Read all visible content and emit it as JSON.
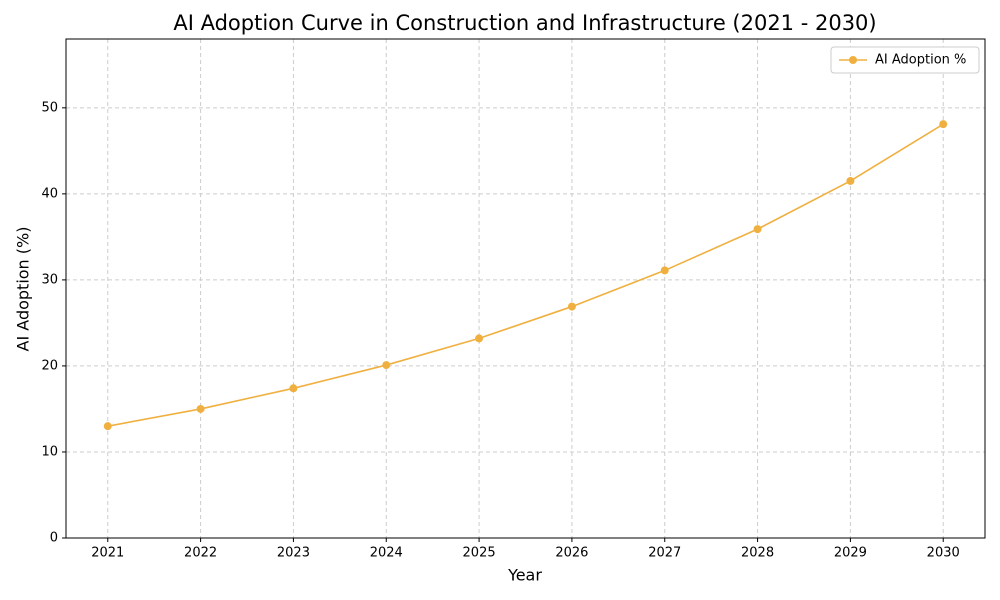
{
  "chart_data": {
    "type": "line",
    "title": "AI Adoption Curve in Construction and Infrastructure (2021 - 2030)",
    "x_label": "Year",
    "y_label": "AI Adoption (%)",
    "x": [
      2021,
      2022,
      2023,
      2024,
      2025,
      2026,
      2027,
      2028,
      2029,
      2030
    ],
    "series": [
      {
        "name": "AI Adoption %",
        "color": "#f0b040",
        "values": [
          13.0,
          15.0,
          17.4,
          20.1,
          23.2,
          26.9,
          31.1,
          35.9,
          41.5,
          48.1
        ]
      }
    ],
    "xlim": [
      2020.55,
      2030.45
    ],
    "xticks": [
      2021,
      2022,
      2023,
      2024,
      2025,
      2026,
      2027,
      2028,
      2029,
      2030
    ],
    "ylim": [
      0,
      58
    ],
    "yticks": [
      0,
      10,
      20,
      30,
      40,
      50
    ],
    "grid": true,
    "legend": "upper-right",
    "markers": true
  }
}
